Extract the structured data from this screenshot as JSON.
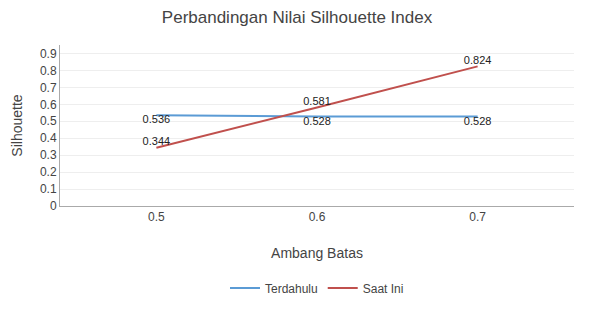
{
  "chart_data": {
    "type": "line",
    "title": "Perbandingan Nilai Silhouette Index",
    "x_label": "Ambang Batas",
    "y_label": "Silhouette",
    "x": [
      0.5,
      0.6,
      0.7
    ],
    "series": [
      {
        "name": "Terdahulu",
        "color": "#5B9BD5",
        "values": [
          0.536,
          0.528,
          0.528
        ]
      },
      {
        "name": "Saat Ini",
        "color": "#C0504D",
        "values": [
          0.344,
          0.581,
          0.824
        ]
      }
    ],
    "xlim": [
      0.44,
      0.76
    ],
    "xticks": [
      0.5,
      0.6,
      0.7
    ],
    "ylim": [
      0,
      0.95
    ],
    "yticks": [
      0,
      0.1,
      0.2,
      0.3,
      0.4,
      0.5,
      0.6,
      0.7,
      0.8,
      0.9
    ],
    "grid": true,
    "legend": "bottom",
    "data_labels": true
  }
}
